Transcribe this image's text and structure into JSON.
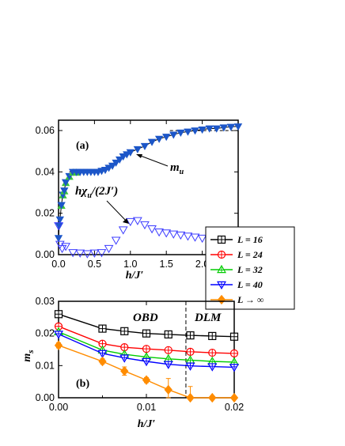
{
  "chart_data": [
    {
      "panel": "(a)",
      "type": "line",
      "xlabel_main": "h/J",
      "xlabel_prime": "′",
      "ylabel": "",
      "xlim": [
        0,
        2.5
      ],
      "ylim": [
        0,
        0.065
      ],
      "xticks": [
        "0.0",
        "0.5",
        "1.0",
        "1.5",
        "2.0",
        "2.5"
      ],
      "yticks": [
        "0.00",
        "0.02",
        "0.04",
        "0.06"
      ],
      "annotations": [
        {
          "id": "mu",
          "main": "m",
          "sub": "u"
        },
        {
          "id": "chi",
          "main": "hχ",
          "sub": "u",
          "tail": "/(2J′)"
        }
      ],
      "plateaus": [
        0.04,
        0.06
      ],
      "mu_x": [
        0.0,
        0.01,
        0.02,
        0.04,
        0.06,
        0.08,
        0.1,
        0.15,
        0.2,
        0.25,
        0.3,
        0.35,
        0.4,
        0.45,
        0.5,
        0.55,
        0.6,
        0.65,
        0.7,
        0.75,
        0.8,
        0.85,
        0.9,
        0.95,
        1.0,
        1.1,
        1.2,
        1.3,
        1.4,
        1.5,
        1.6,
        1.7,
        1.8,
        1.9,
        2.0,
        2.1,
        2.2,
        2.3,
        2.4,
        2.5
      ],
      "mu_y": [
        0.008,
        0.014,
        0.017,
        0.024,
        0.029,
        0.031,
        0.035,
        0.038,
        0.04,
        0.04,
        0.04,
        0.04,
        0.04,
        0.04,
        0.04,
        0.04,
        0.0405,
        0.041,
        0.042,
        0.043,
        0.0445,
        0.046,
        0.0475,
        0.0485,
        0.0495,
        0.051,
        0.0525,
        0.0545,
        0.056,
        0.057,
        0.058,
        0.059,
        0.0595,
        0.06,
        0.0605,
        0.061,
        0.061,
        0.0615,
        0.0618,
        0.062
      ],
      "chi_x": [
        0.0,
        0.02,
        0.05,
        0.1,
        0.2,
        0.3,
        0.4,
        0.5,
        0.6,
        0.7,
        0.8,
        0.9,
        1.0,
        1.1,
        1.2,
        1.3,
        1.4,
        1.5,
        1.6,
        1.7,
        1.8,
        1.9,
        2.0,
        2.1,
        2.2,
        2.3,
        2.4,
        2.5
      ],
      "chi_y": [
        0.014,
        0.005,
        0.003,
        0.004,
        0.001,
        0.0008,
        0.0005,
        0.0008,
        0.001,
        0.003,
        0.007,
        0.012,
        0.016,
        0.0165,
        0.0145,
        0.0125,
        0.011,
        0.0105,
        0.01,
        0.0095,
        0.009,
        0.0085,
        0.008,
        0.0075,
        0.007,
        0.006,
        0.0055,
        0.0055
      ]
    },
    {
      "panel": "(b)",
      "type": "line",
      "xlabel_main": "h/J",
      "xlabel_prime": "′",
      "ylabel_main": "m",
      "ylabel_sub": "s",
      "xlim": [
        0,
        0.02
      ],
      "ylim": [
        0,
        0.03
      ],
      "xticks": [
        "0.00",
        "0.01",
        "0.02"
      ],
      "yticks": [
        "0.00",
        "0.01",
        "0.02",
        "0.03"
      ],
      "region_labels": [
        "OBD",
        "DLM"
      ],
      "boundary_x": 0.0145,
      "series": [
        {
          "name": "L = 16",
          "marker": "boxplus",
          "color": "#000000",
          "x": [
            0.0,
            0.005,
            0.0075,
            0.01,
            0.0125,
            0.015,
            0.0175,
            0.02
          ],
          "y": [
            0.026,
            0.0215,
            0.0207,
            0.02,
            0.0197,
            0.0194,
            0.0192,
            0.019
          ]
        },
        {
          "name": "L = 24",
          "marker": "circleplus",
          "color": "#ff0000",
          "x": [
            0.0,
            0.005,
            0.0075,
            0.01,
            0.0125,
            0.015,
            0.0175,
            0.02
          ],
          "y": [
            0.0222,
            0.0168,
            0.0157,
            0.0152,
            0.0148,
            0.0143,
            0.014,
            0.0138
          ]
        },
        {
          "name": "L = 32",
          "marker": "triangleplus",
          "color": "#00cc00",
          "x": [
            0.0,
            0.005,
            0.0075,
            0.01,
            0.0125,
            0.015,
            0.0175,
            0.02
          ],
          "y": [
            0.0205,
            0.0148,
            0.0135,
            0.0127,
            0.0121,
            0.0117,
            0.0113,
            0.0111
          ]
        },
        {
          "name": "L = 40",
          "marker": "invtriangleplus",
          "color": "#0000ff",
          "x": [
            0.0,
            0.005,
            0.0075,
            0.01,
            0.0125,
            0.015,
            0.0175,
            0.02
          ],
          "y": [
            0.0198,
            0.0138,
            0.0124,
            0.0113,
            0.0104,
            0.0099,
            0.0097,
            0.0095
          ]
        },
        {
          "name_main": "L",
          "name_arrow": "→",
          "name_inf": "∞",
          "marker": "diamond",
          "color": "#ff8c00",
          "x": [
            0.0,
            0.005,
            0.0075,
            0.01,
            0.0125,
            0.015,
            0.0175,
            0.02
          ],
          "y": [
            0.0163,
            0.0113,
            0.0083,
            0.0055,
            0.0025,
            0.0,
            0.0,
            0.0
          ],
          "err": [
            0.0008,
            0.0008,
            0.0013,
            0.0008,
            0.0035,
            0.0035,
            0.0002,
            0.0002
          ]
        }
      ]
    }
  ],
  "legend": {
    "entries": [
      {
        "label": "L = 16",
        "marker": "boxplus",
        "color": "#000000"
      },
      {
        "label": "L = 24",
        "marker": "circleplus",
        "color": "#ff0000"
      },
      {
        "label": "L = 32",
        "marker": "triangleplus",
        "color": "#00cc00"
      },
      {
        "label": "L = 40",
        "marker": "invtriangleplus",
        "color": "#0000ff"
      },
      {
        "label_main": "L",
        "label_arrow": "→",
        "label_inf": "∞",
        "marker": "diamond",
        "color": "#ff8c00"
      }
    ]
  },
  "colors": {
    "mu_fill": "#1c56c8",
    "mu_green": "#3cc33c",
    "chi": "#3c3cff"
  }
}
